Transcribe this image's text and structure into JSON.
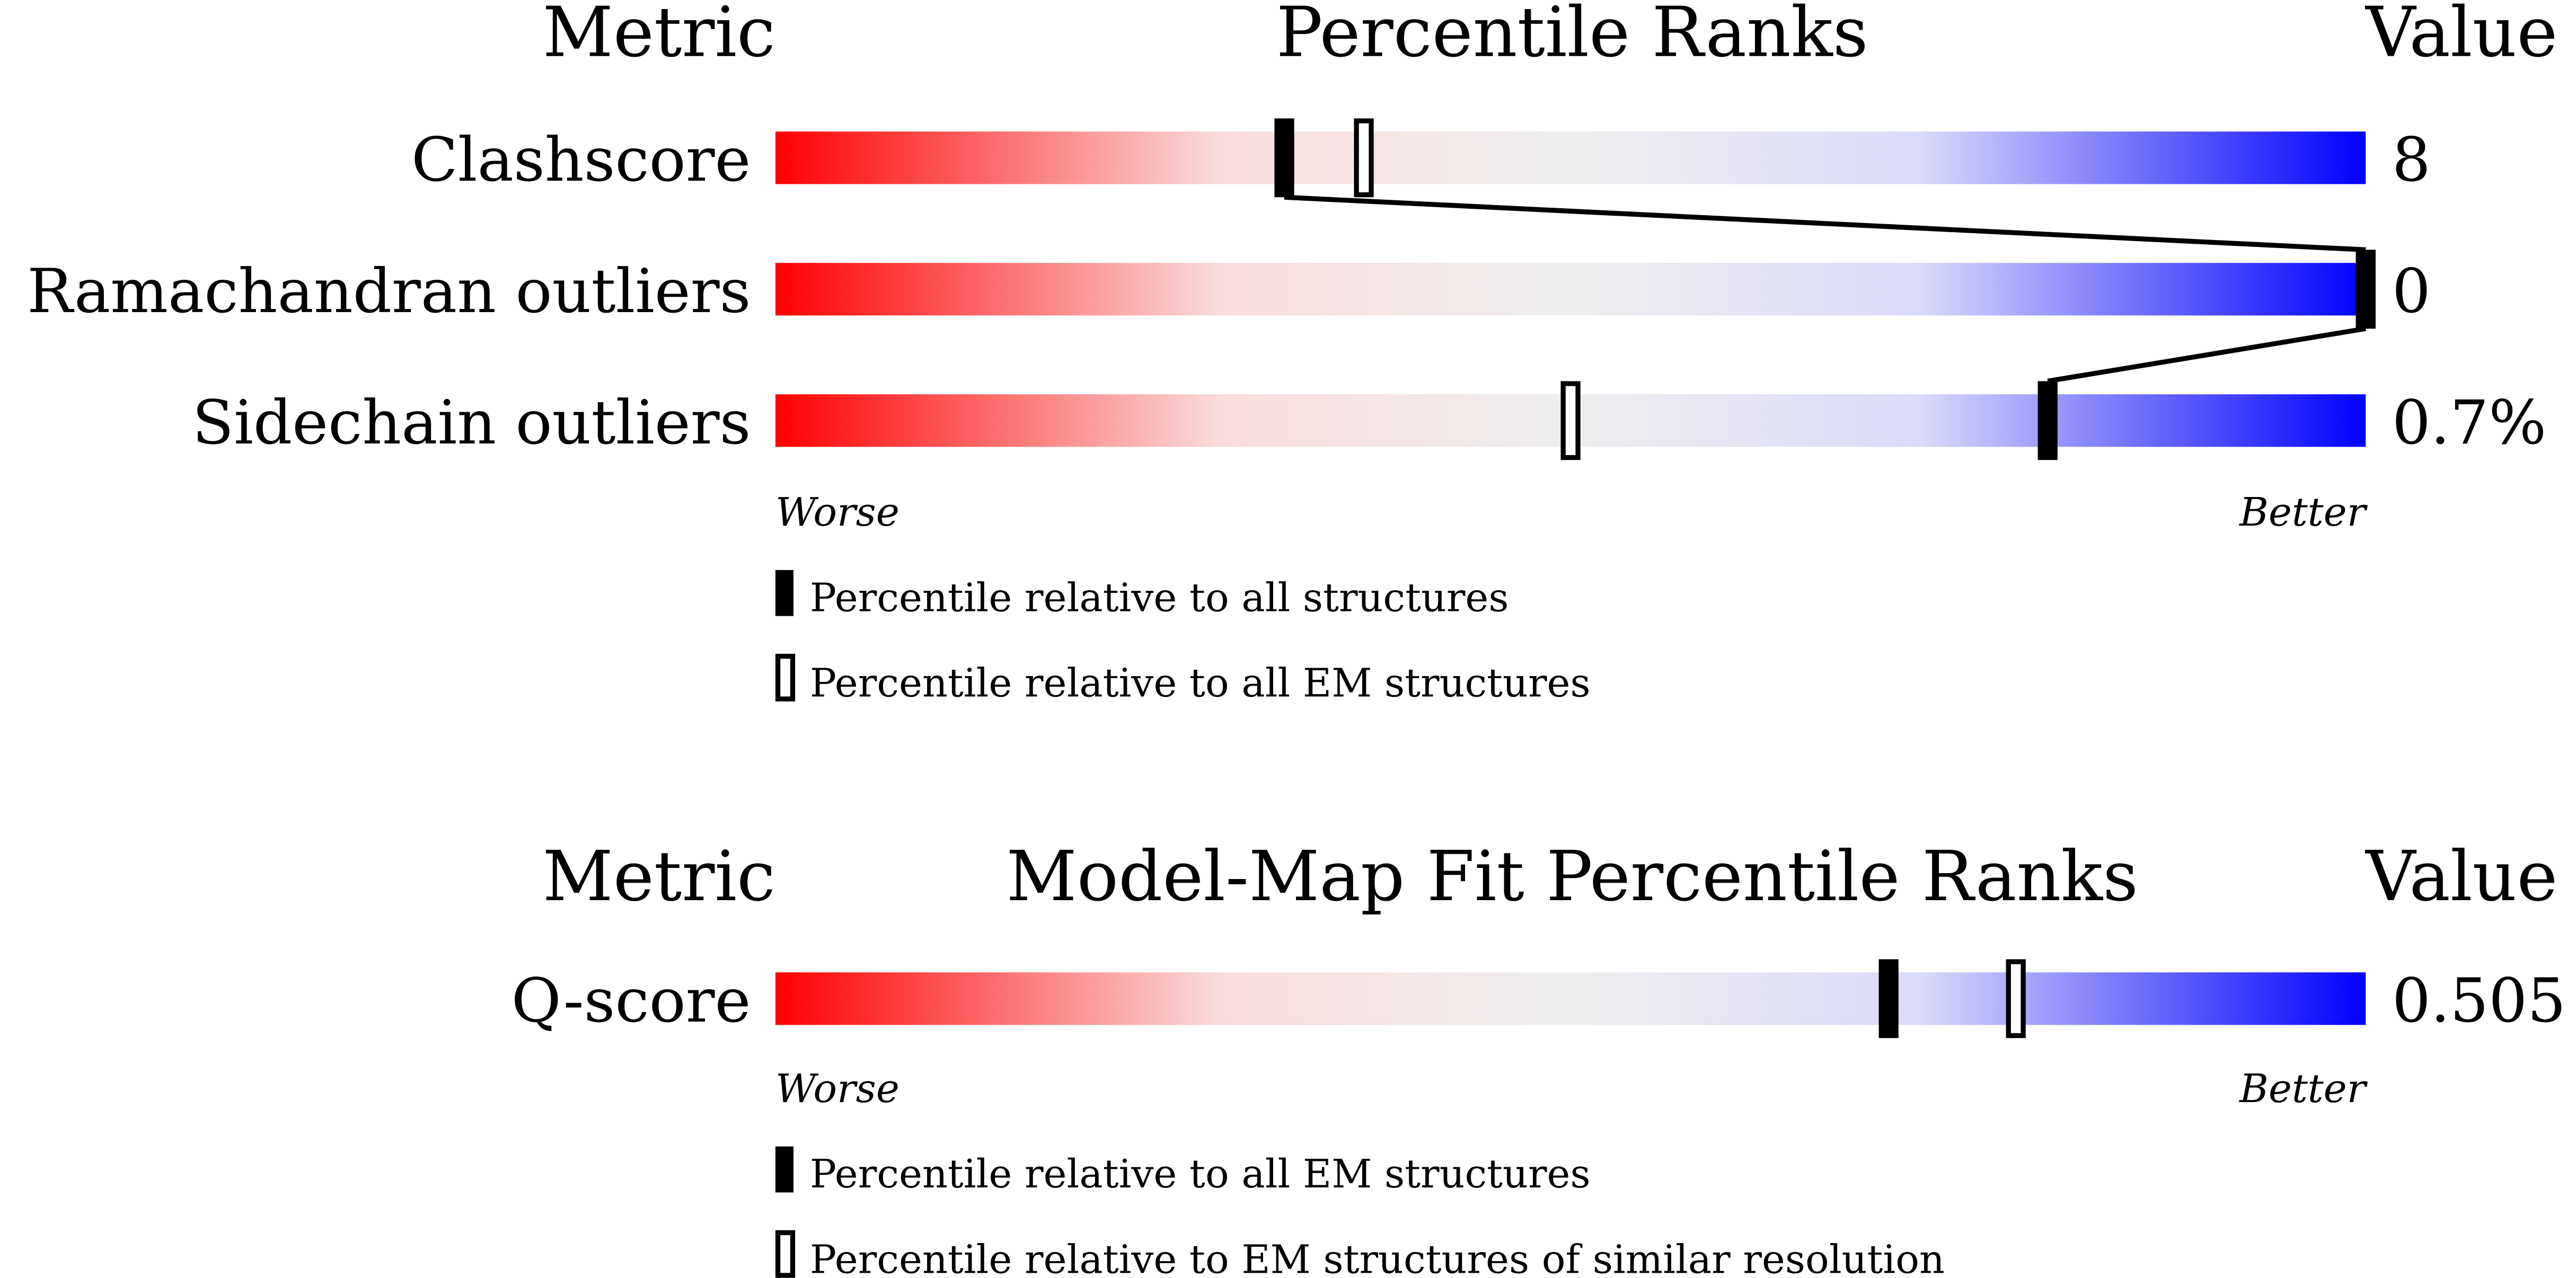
{
  "chart_data": [
    {
      "type": "percentile-slider",
      "headers": {
        "metric": "Metric",
        "title": "Percentile Ranks",
        "value": "Value"
      },
      "scale_labels": {
        "worse": "Worse",
        "better": "Better"
      },
      "xlim": [
        0,
        100
      ],
      "metrics": [
        {
          "name": "Clashscore",
          "value": "8",
          "percentile_all": 32,
          "percentile_subset": 37
        },
        {
          "name": "Ramachandran outliers",
          "value": "0",
          "percentile_all": 100,
          "percentile_subset": 100
        },
        {
          "name": "Sidechain outliers",
          "value": "0.7%",
          "percentile_all": 80,
          "percentile_subset": 50
        }
      ],
      "legend": {
        "filled": "Percentile relative to all structures",
        "open": "Percentile relative to all EM structures"
      }
    },
    {
      "type": "percentile-slider",
      "headers": {
        "metric": "Metric",
        "title": "Model-Map Fit Percentile Ranks",
        "value": "Value"
      },
      "scale_labels": {
        "worse": "Worse",
        "better": "Better"
      },
      "xlim": [
        0,
        100
      ],
      "metrics": [
        {
          "name": "Q-score",
          "value": "0.505",
          "percentile_all": 70,
          "percentile_subset": 78
        }
      ],
      "legend": {
        "filled": "Percentile relative to all EM structures",
        "open": "Percentile relative to EM structures of similar resolution"
      }
    }
  ],
  "colors": {
    "worse": "#ff0000",
    "mid": "#eeeeee",
    "better": "#0000ff",
    "marker": "#000000"
  }
}
